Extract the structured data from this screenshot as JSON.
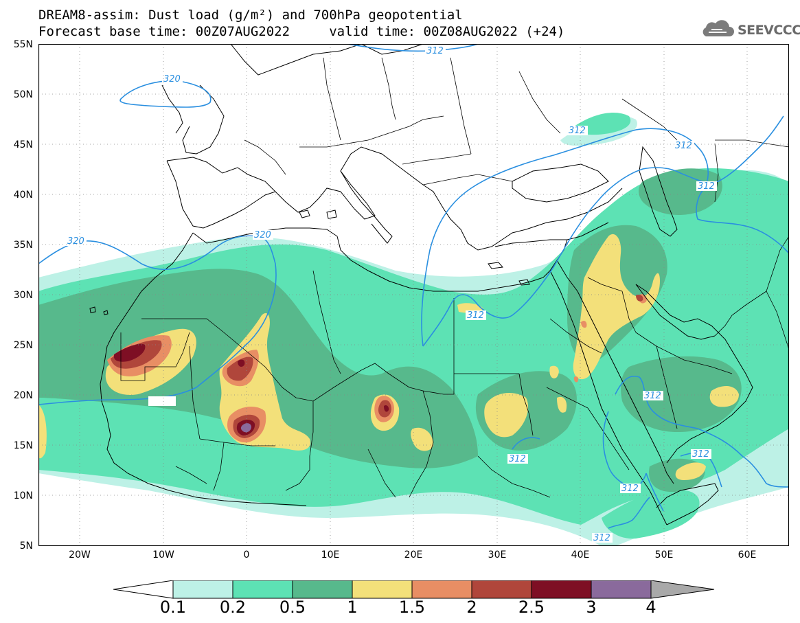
{
  "header": {
    "title_line1": "DREAM8-assim: Dust load (g/m²) and 700hPa geopotential",
    "title_line2": "Forecast base time: 00Z07AUG2022     valid time: 00Z08AUG2022 (+24)",
    "logo_text": "SEEVCCC",
    "logo_icon": "cloud-icon"
  },
  "map": {
    "projection": "lat-lon",
    "lon_range": [
      -25,
      65
    ],
    "lat_range": [
      5,
      55
    ],
    "lat_labels": [
      "55N",
      "50N",
      "45N",
      "40N",
      "35N",
      "30N",
      "25N",
      "20N",
      "15N",
      "10N",
      "5N"
    ],
    "lon_labels": [
      "20W",
      "10W",
      "0",
      "10E",
      "20E",
      "30E",
      "40E",
      "50E",
      "60E"
    ],
    "gridlines": "dotted",
    "contour_labels": [
      "312",
      "320",
      "320",
      "312",
      "312",
      "312",
      "320",
      "312",
      "312",
      "312",
      "312",
      "312",
      "312"
    ],
    "contour_color": "#2a8fe0",
    "ocean_color": "#ffffff",
    "border_color": "#000000"
  },
  "colorbar": {
    "labels": [
      "0.1",
      "0.2",
      "0.5",
      "1",
      "1.5",
      "2",
      "2.5",
      "3",
      "4"
    ],
    "colors": [
      "#ffffff",
      "#bdf1e6",
      "#5de2b4",
      "#57b98c",
      "#f3e07a",
      "#e88e64",
      "#b0463b",
      "#7e0f24",
      "#8a6a9c",
      "#a9a9a9"
    ]
  }
}
